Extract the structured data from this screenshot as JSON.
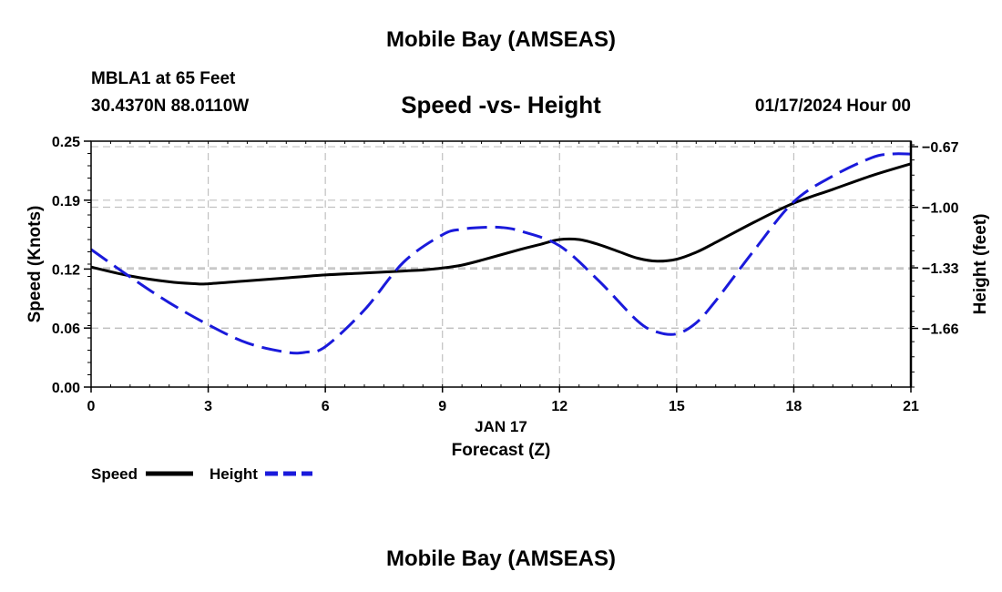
{
  "header": {
    "page_title": "Mobile Bay (AMSEAS)",
    "station": "MBLA1 at 65 Feet",
    "coordinates": "30.4370N  88.0110W",
    "forecast_time": "01/17/2024 Hour 00"
  },
  "footer": {
    "next_title": "Mobile Bay (AMSEAS)"
  },
  "colors": {
    "speed": "#000000",
    "height": "#1a1adb",
    "grid": "#c0c0c0"
  },
  "chart_data": {
    "type": "line",
    "title": "Speed -vs- Height",
    "xlabel": "Forecast (Z)",
    "date_label": "JAN 17",
    "ylabel": "Speed (Knots)",
    "y2label": "Height (feet)",
    "grid": true,
    "legend_position": "bottom-left",
    "xlim": [
      0,
      21
    ],
    "ylim": [
      0,
      0.25
    ],
    "y2lim": [
      -1.98,
      -0.64
    ],
    "x_ticks": [
      0,
      3,
      6,
      9,
      12,
      15,
      18,
      21
    ],
    "x_tick_labels": [
      "0",
      "3",
      "6",
      "9",
      "12",
      "15",
      "18",
      "21"
    ],
    "y_ticks": [
      0,
      0.06,
      0.12,
      0.19,
      0.25
    ],
    "y_tick_labels": [
      "0.00",
      "0.06",
      "0.12",
      "0.19",
      "0.25"
    ],
    "y2_ticks": [
      -1.66,
      -1.33,
      -1.0,
      -0.67
    ],
    "y2_tick_labels": [
      "−1.66",
      "−1.33",
      "−1.00",
      "−0.67"
    ],
    "series": [
      {
        "name": "Speed",
        "axis": "left",
        "style": "solid",
        "x": [
          0,
          1,
          2,
          2.7,
          3,
          4,
          5,
          6,
          7,
          8,
          8.5,
          9,
          9.5,
          10,
          11,
          11.5,
          12,
          12.5,
          13,
          13.5,
          14,
          14.5,
          15,
          15.5,
          16,
          17,
          18,
          19,
          20,
          21
        ],
        "y": [
          0.122,
          0.113,
          0.107,
          0.105,
          0.105,
          0.108,
          0.111,
          0.114,
          0.116,
          0.118,
          0.119,
          0.121,
          0.124,
          0.129,
          0.14,
          0.145,
          0.15,
          0.15,
          0.145,
          0.138,
          0.131,
          0.128,
          0.13,
          0.137,
          0.147,
          0.168,
          0.187,
          0.201,
          0.215,
          0.227
        ]
      },
      {
        "name": "Height",
        "axis": "right",
        "style": "dashed",
        "x": [
          0,
          1,
          2,
          3,
          4,
          5,
          5.5,
          6,
          7,
          8,
          9,
          9.5,
          10,
          10.5,
          11,
          12,
          13,
          14,
          14.5,
          15,
          15.5,
          16,
          17,
          18,
          19,
          20,
          20.5,
          21
        ],
        "y": [
          -1.23,
          -1.38,
          -1.52,
          -1.64,
          -1.74,
          -1.79,
          -1.79,
          -1.76,
          -1.56,
          -1.3,
          -1.15,
          -1.12,
          -1.11,
          -1.11,
          -1.13,
          -1.21,
          -1.4,
          -1.62,
          -1.68,
          -1.69,
          -1.63,
          -1.51,
          -1.23,
          -0.97,
          -0.83,
          -0.73,
          -0.71,
          -0.71
        ]
      }
    ]
  }
}
